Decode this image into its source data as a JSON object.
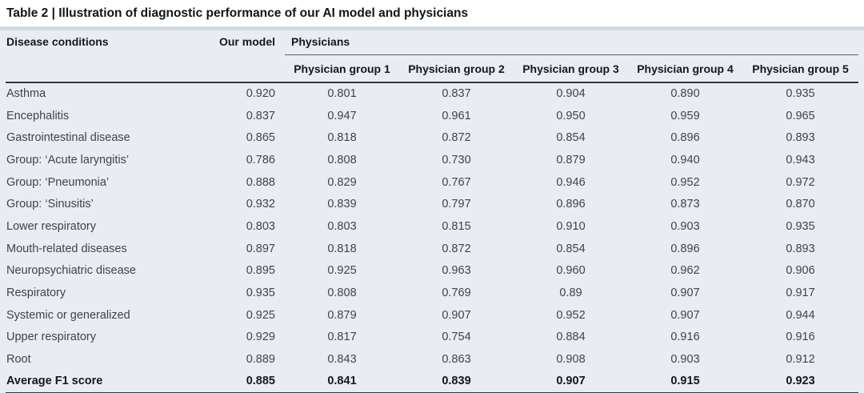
{
  "table": {
    "title_prefix": "Table 2 | ",
    "title": "Illustration of diagnostic performance of our AI model and physicians",
    "columns": {
      "disease": "Disease conditions",
      "our_model": "Our model",
      "physicians": "Physicians",
      "physician_groups": [
        "Physician group 1",
        "Physician group 2",
        "Physician group 3",
        "Physician group 4",
        "Physician group 5"
      ]
    },
    "rows": [
      {
        "label": "Asthma",
        "values": [
          "0.920",
          "0.801",
          "0.837",
          "0.904",
          "0.890",
          "0.935"
        ]
      },
      {
        "label": "Encephalitis",
        "values": [
          "0.837",
          "0.947",
          "0.961",
          "0.950",
          "0.959",
          "0.965"
        ]
      },
      {
        "label": "Gastrointestinal disease",
        "values": [
          "0.865",
          "0.818",
          "0.872",
          "0.854",
          "0.896",
          "0.893"
        ]
      },
      {
        "label": "Group: ‘Acute laryngitis’",
        "values": [
          "0.786",
          "0.808",
          "0.730",
          "0.879",
          "0.940",
          "0.943"
        ]
      },
      {
        "label": "Group: ‘Pneumonia’",
        "values": [
          "0.888",
          "0.829",
          "0.767",
          "0.946",
          "0.952",
          "0.972"
        ]
      },
      {
        "label": "Group: ‘Sinusitis’",
        "values": [
          "0.932",
          "0.839",
          "0.797",
          "0.896",
          "0.873",
          "0.870"
        ]
      },
      {
        "label": "Lower respiratory",
        "values": [
          "0.803",
          "0.803",
          "0.815",
          "0.910",
          "0.903",
          "0.935"
        ]
      },
      {
        "label": "Mouth-related diseases",
        "values": [
          "0.897",
          "0.818",
          "0.872",
          "0.854",
          "0.896",
          "0.893"
        ]
      },
      {
        "label": "Neuropsychiatric disease",
        "values": [
          "0.895",
          "0.925",
          "0.963",
          "0.960",
          "0.962",
          "0.906"
        ]
      },
      {
        "label": "Respiratory",
        "values": [
          "0.935",
          "0.808",
          "0.769",
          "0.89",
          "0.907",
          "0.917"
        ]
      },
      {
        "label": "Systemic or generalized",
        "values": [
          "0.925",
          "0.879",
          "0.907",
          "0.952",
          "0.907",
          "0.944"
        ]
      },
      {
        "label": "Upper respiratory",
        "values": [
          "0.929",
          "0.817",
          "0.754",
          "0.884",
          "0.916",
          "0.916"
        ]
      },
      {
        "label": "Root",
        "values": [
          "0.889",
          "0.843",
          "0.863",
          "0.908",
          "0.903",
          "0.912"
        ]
      }
    ],
    "average_row": {
      "label": "Average F1 score",
      "values": [
        "0.885",
        "0.841",
        "0.839",
        "0.907",
        "0.915",
        "0.923"
      ]
    }
  },
  "colors": {
    "table_background": "#e9edf1",
    "title_divider": "#d6dbe1",
    "rule_dark": "#33383d",
    "rule_light": "#5d6268",
    "header_text": "#14181c",
    "body_text": "#3e4449"
  }
}
